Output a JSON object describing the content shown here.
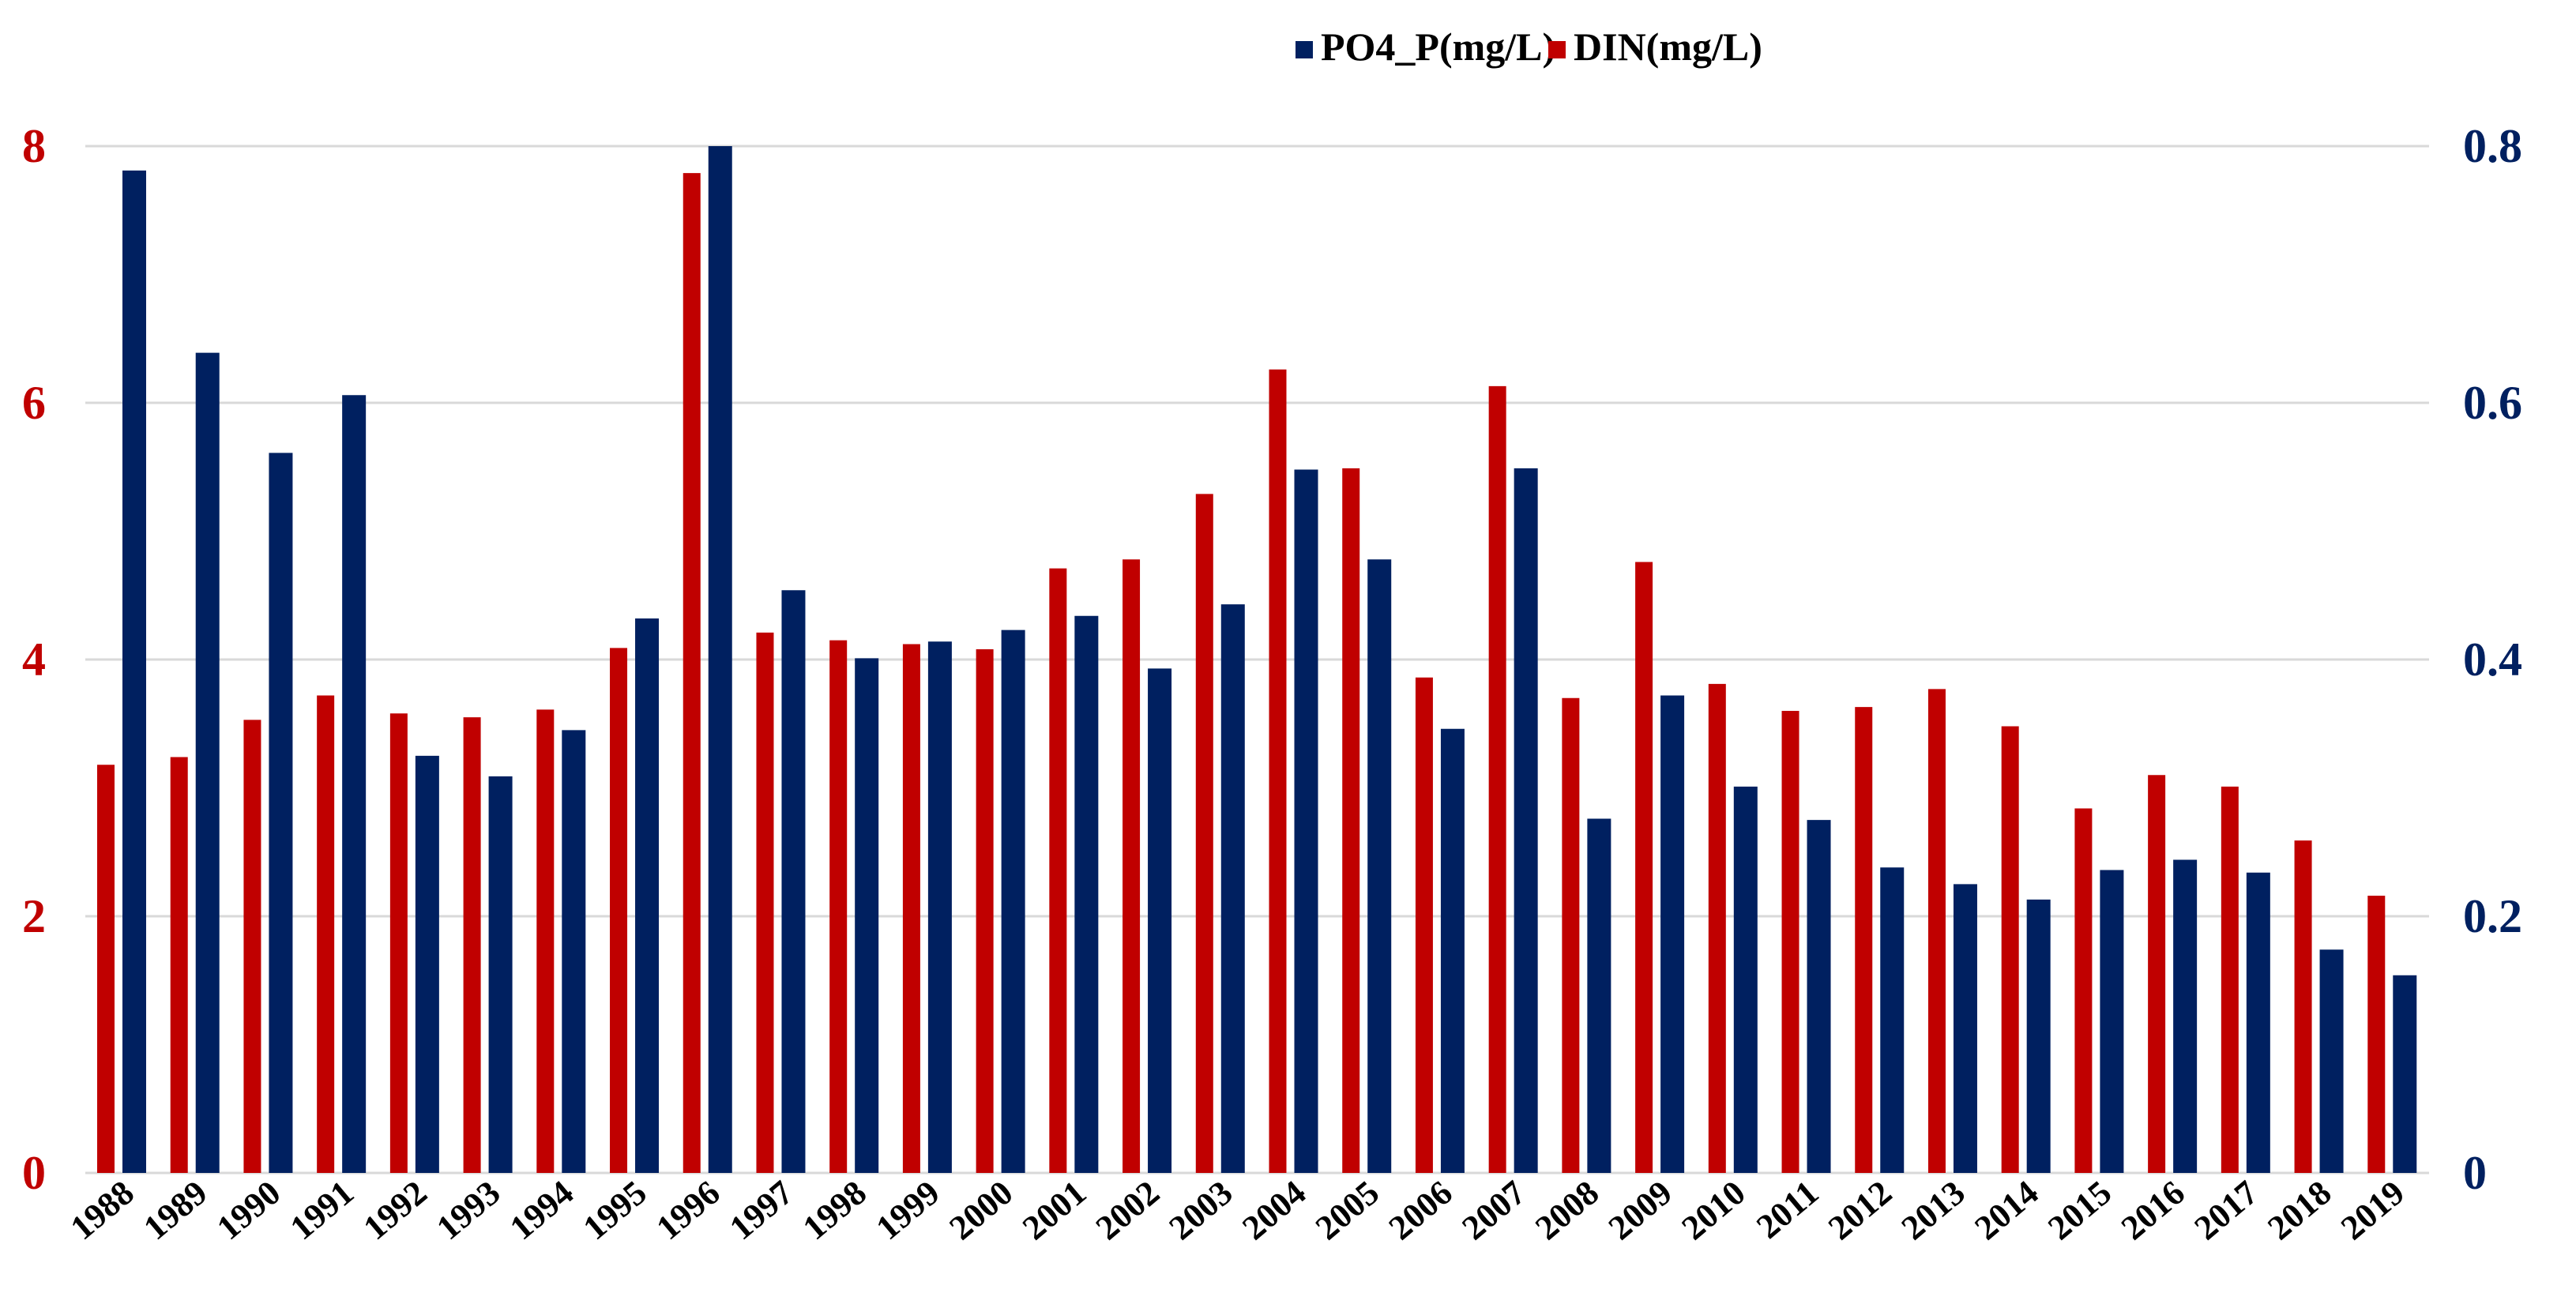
{
  "chart_data": {
    "type": "bar",
    "title": "",
    "xlabel": "",
    "ylabel_left": "",
    "ylabel_right": "",
    "categories": [
      "1988",
      "1989",
      "1990",
      "1991",
      "1992",
      "1993",
      "1994",
      "1995",
      "1996",
      "1997",
      "1998",
      "1999",
      "2000",
      "2001",
      "2002",
      "2003",
      "2004",
      "2005",
      "2006",
      "2007",
      "2008",
      "2009",
      "2010",
      "2011",
      "2012",
      "2013",
      "2014",
      "2015",
      "2016",
      "2017",
      "2018",
      "2019"
    ],
    "series": [
      {
        "name": "DIN(mg/L)",
        "axis": "left",
        "color": "#C00000",
        "values": [
          3.18,
          3.24,
          3.53,
          3.72,
          3.58,
          3.55,
          3.61,
          4.09,
          7.79,
          4.21,
          4.15,
          4.12,
          4.08,
          4.71,
          4.78,
          5.29,
          6.26,
          5.49,
          3.86,
          6.13,
          3.7,
          4.76,
          3.81,
          3.6,
          3.63,
          3.77,
          3.48,
          2.84,
          3.1,
          3.01,
          2.59,
          2.16
        ]
      },
      {
        "name": "PO4_P(mg/L)",
        "axis": "right",
        "color": "#002060",
        "values": [
          0.781,
          0.639,
          0.561,
          0.606,
          0.325,
          0.309,
          0.345,
          0.432,
          0.8,
          0.454,
          0.401,
          0.414,
          0.423,
          0.434,
          0.393,
          0.443,
          0.548,
          0.478,
          0.346,
          0.549,
          0.276,
          0.372,
          0.301,
          0.275,
          0.238,
          0.225,
          0.213,
          0.236,
          0.244,
          0.234,
          0.174,
          0.154
        ]
      }
    ],
    "legend_order": [
      "PO4_P(mg/L)",
      "DIN(mg/L)"
    ],
    "legend_position": "top",
    "ylim_left": [
      0,
      8
    ],
    "yticks_left": [
      "0",
      "2",
      "4",
      "6",
      "8"
    ],
    "ylim_right": [
      0,
      0.8
    ],
    "yticks_right": [
      "0",
      "0.2",
      "0.4",
      "0.6",
      "0.8"
    ],
    "grid": "horizontal",
    "colors": {
      "left_axis": "#C00000",
      "right_axis": "#002060",
      "grid": "#D9D9D9"
    }
  }
}
